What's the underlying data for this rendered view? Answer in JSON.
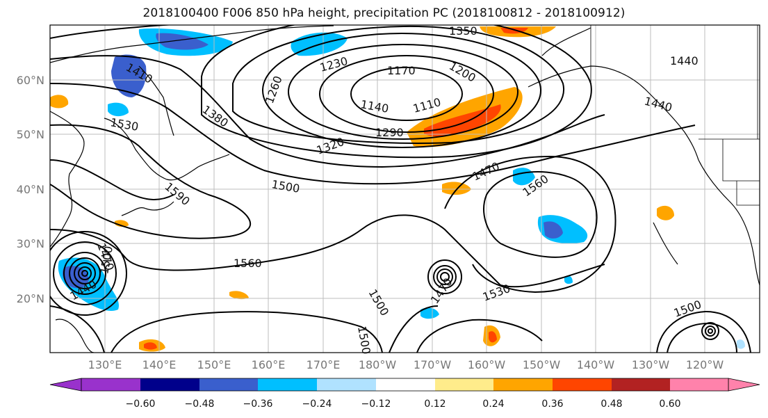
{
  "title": "2018100400 F006 850 hPa height, precipitation PC (2018100812 - 2018100912)",
  "lat_labels": [
    "60°N",
    "50°N",
    "40°N",
    "30°N",
    "20°N"
  ],
  "lon_labels": [
    "130°E",
    "140°E",
    "150°E",
    "160°E",
    "170°E",
    "180°W",
    "170°W",
    "160°W",
    "150°W",
    "140°W",
    "130°W",
    "120°W"
  ],
  "contour_labels": [
    "1350",
    "1410",
    "1230",
    "1170",
    "1200",
    "1260",
    "1140",
    "1110",
    "1290",
    "1380",
    "1530",
    "1320",
    "1440",
    "1440",
    "1470",
    "1500",
    "1560",
    "1590",
    "1560",
    "1470",
    "1440",
    "1500",
    "1500",
    "1470",
    "1530",
    "1500",
    "1500"
  ],
  "colorbar": {
    "colors": [
      "#9932cc",
      "#00008b",
      "#3a5fcd",
      "#00bfff",
      "#b0e2ff",
      "#ffffff",
      "#ffec8b",
      "#ffa500",
      "#ff4500",
      "#b22222",
      "#ff82ab"
    ],
    "ticks": [
      "−0.60",
      "−0.48",
      "−0.36",
      "−0.24",
      "−0.12",
      "0.12",
      "0.24",
      "0.36",
      "0.48",
      "0.60"
    ]
  }
}
